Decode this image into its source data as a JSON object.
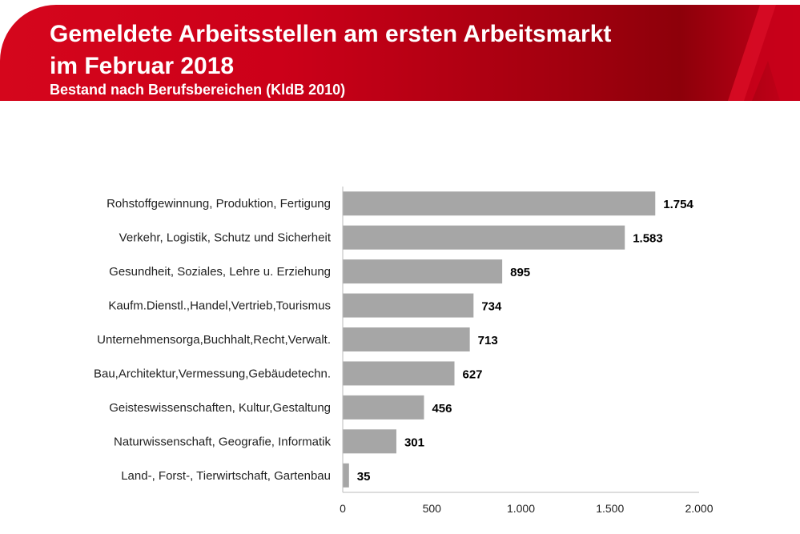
{
  "header": {
    "title_line1": "Gemeldete Arbeitsstellen am ersten Arbeitsmarkt",
    "title_line2": "im Februar 2018",
    "subtitle": "Bestand nach Berufsbereichen (KldB 2010)",
    "colors": {
      "banner": "#cc0019",
      "banner_dark": "#8d000a"
    }
  },
  "chart_data": {
    "type": "bar",
    "orientation": "horizontal",
    "categories": [
      "Rohstoffgewinnung, Produktion, Fertigung",
      "Verkehr, Logistik, Schutz und Sicherheit",
      "Gesundheit, Soziales, Lehre u. Erziehung",
      "Kaufm.Dienstl.,Handel,Vertrieb,Tourismus",
      "Unternehmensorga,Buchhalt,Recht,Verwalt.",
      "Bau,Architektur,Vermessung,Gebäudetechn.",
      "Geisteswissenschaften, Kultur,Gestaltung",
      "Naturwissenschaft, Geografie, Informatik",
      "Land-, Forst-, Tierwirtschaft, Gartenbau"
    ],
    "values": [
      1754,
      1583,
      895,
      734,
      713,
      627,
      456,
      301,
      35
    ],
    "data_labels": [
      "1.754",
      "1.583",
      "895",
      "734",
      "713",
      "627",
      "456",
      "301",
      "35"
    ],
    "xlim": [
      0,
      2000
    ],
    "xticks": [
      0,
      500,
      1000,
      1500,
      2000
    ],
    "xtick_labels": [
      "0",
      "500",
      "1.000",
      "1.500",
      "2.000"
    ],
    "grid": false,
    "bar_color": "#a6a6a6"
  }
}
